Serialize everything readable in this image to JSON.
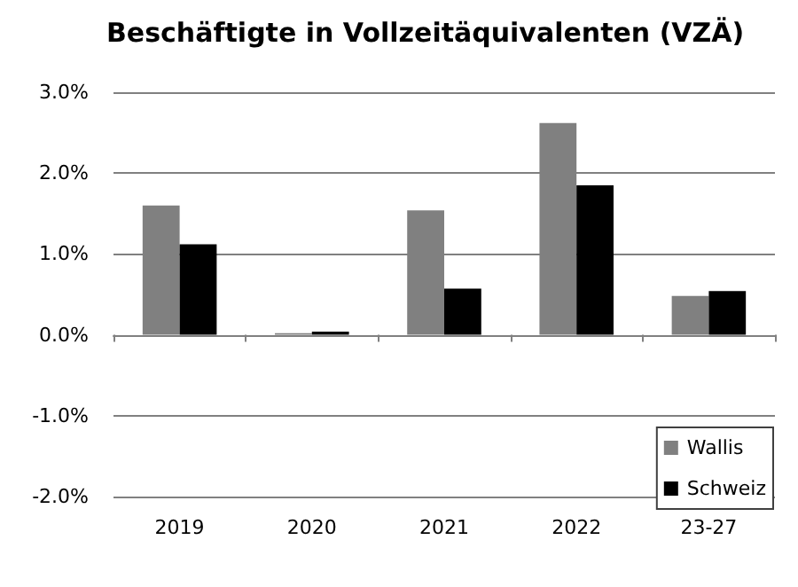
{
  "chart_data": {
    "type": "bar",
    "title": "Beschäftigte in Vollzeitäquivalenten (VZÄ)",
    "categories": [
      "2019",
      "2020",
      "2021",
      "2022",
      "23-27"
    ],
    "series": [
      {
        "name": "Wallis",
        "color": "#808080",
        "values": [
          1.6,
          0.02,
          1.54,
          2.62,
          0.48
        ]
      },
      {
        "name": "Schweiz",
        "color": "#000000",
        "values": [
          1.12,
          0.04,
          0.57,
          1.85,
          0.54
        ]
      }
    ],
    "ylim": [
      -2,
      3
    ],
    "yticks": [
      {
        "value": -2,
        "label": "-2.0%"
      },
      {
        "value": -1,
        "label": "-1.0%"
      },
      {
        "value": 0,
        "label": "0.0%"
      },
      {
        "value": 1,
        "label": "1.0%"
      },
      {
        "value": 2,
        "label": "2.0%"
      },
      {
        "value": 3,
        "label": "3.0%"
      }
    ],
    "grid": "y",
    "legend": "bottom right"
  }
}
